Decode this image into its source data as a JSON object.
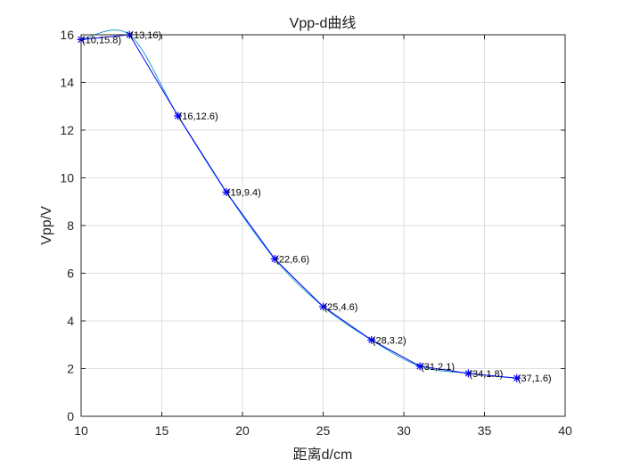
{
  "chart_data": {
    "type": "line",
    "title": "Vpp-d曲线",
    "xlabel": "距离d/cm",
    "ylabel": "Vpp/V",
    "xlim": [
      10,
      40
    ],
    "ylim": [
      0,
      16
    ],
    "xticks": [
      10,
      15,
      20,
      25,
      30,
      35,
      40
    ],
    "yticks": [
      0,
      2,
      4,
      6,
      8,
      10,
      12,
      14,
      16
    ],
    "grid": true,
    "series": [
      {
        "style": "solid-line-with-asterisk-markers",
        "color": "#0000ff",
        "x": [
          10,
          13,
          16,
          19,
          22,
          25,
          28,
          31,
          34,
          37
        ],
        "y": [
          15.8,
          16,
          12.6,
          9.4,
          6.6,
          4.6,
          3.2,
          2.1,
          1.8,
          1.6
        ],
        "labels": [
          "(10,15.8)",
          "(13,16)",
          "(16,12.6)",
          "(19,9.4)",
          "(22,6.6)",
          "(25,4.6)",
          "(28,3.2)",
          "(31,2.1)",
          "(34,1.8)",
          "(37,1.6)"
        ]
      },
      {
        "style": "smooth-fit-curve",
        "color": "#1f9ec9"
      }
    ]
  }
}
